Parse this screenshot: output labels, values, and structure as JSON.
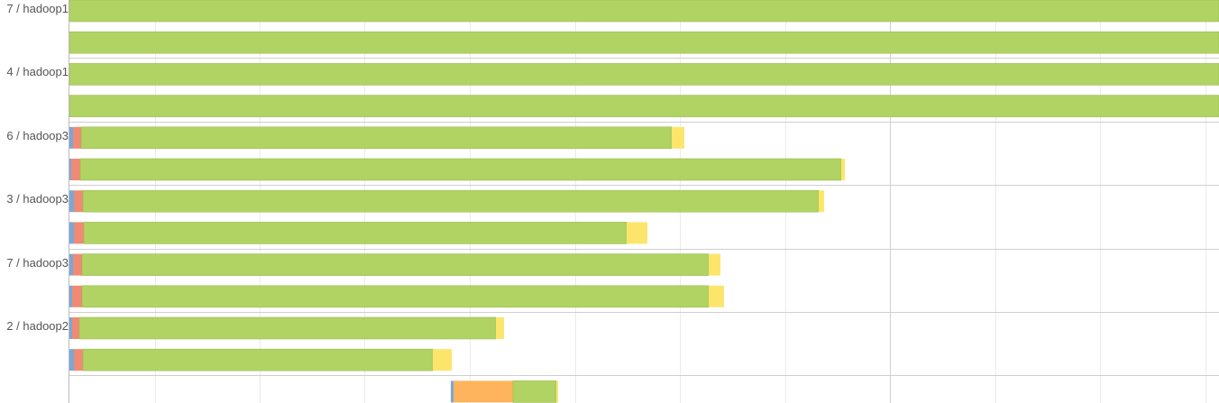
{
  "colors": {
    "gridline": "#ebebeb",
    "major_gridline": "#cfcfcf",
    "separator": "#cfcfcf",
    "axis": "#bbbbbb",
    "label_text": "#555555",
    "shuffle": "#7ba7d6",
    "merge": "#f08a74",
    "execute": "#b0d364",
    "execute_border": "#9cbc52",
    "output": "#fde56b",
    "orange": "#fdb45c"
  },
  "groups": [
    {
      "label": "7 / hadoop1"
    },
    {
      "label": "4 / hadoop1"
    },
    {
      "label": "6 / hadoop3"
    },
    {
      "label": "3 / hadoop3"
    },
    {
      "label": "7 / hadoop3"
    },
    {
      "label": "2 / hadoop2"
    }
  ],
  "tasks": [
    {
      "group": 0,
      "segments": [
        {
          "phase": "execute",
          "start": 0,
          "end": 1275
        }
      ]
    },
    {
      "group": 0,
      "segments": [
        {
          "phase": "execute",
          "start": 0,
          "end": 1275
        }
      ]
    },
    {
      "group": 1,
      "segments": [
        {
          "phase": "execute",
          "start": 0,
          "end": 1275
        }
      ]
    },
    {
      "group": 1,
      "segments": [
        {
          "phase": "execute",
          "start": 0,
          "end": 1275
        }
      ]
    },
    {
      "group": 2,
      "segments": [
        {
          "phase": "shuffle",
          "start": 0,
          "end": 4
        },
        {
          "phase": "merge",
          "start": 4,
          "end": 13
        },
        {
          "phase": "execute",
          "start": 13,
          "end": 668
        },
        {
          "phase": "output",
          "start": 668,
          "end": 682
        }
      ]
    },
    {
      "group": 2,
      "segments": [
        {
          "phase": "shuffle",
          "start": 0,
          "end": 2
        },
        {
          "phase": "merge",
          "start": 2,
          "end": 12
        },
        {
          "phase": "execute",
          "start": 12,
          "end": 856
        },
        {
          "phase": "output",
          "start": 856,
          "end": 860
        }
      ]
    },
    {
      "group": 3,
      "segments": [
        {
          "phase": "shuffle",
          "start": 0,
          "end": 5
        },
        {
          "phase": "merge",
          "start": 5,
          "end": 15
        },
        {
          "phase": "execute",
          "start": 15,
          "end": 831
        },
        {
          "phase": "output",
          "start": 831,
          "end": 837
        }
      ]
    },
    {
      "group": 3,
      "segments": [
        {
          "phase": "shuffle",
          "start": 0,
          "end": 5
        },
        {
          "phase": "merge",
          "start": 5,
          "end": 16
        },
        {
          "phase": "execute",
          "start": 16,
          "end": 618
        },
        {
          "phase": "output",
          "start": 618,
          "end": 641
        }
      ]
    },
    {
      "group": 4,
      "segments": [
        {
          "phase": "shuffle",
          "start": 0,
          "end": 4
        },
        {
          "phase": "merge",
          "start": 4,
          "end": 14
        },
        {
          "phase": "execute",
          "start": 14,
          "end": 709
        },
        {
          "phase": "output",
          "start": 709,
          "end": 722
        }
      ]
    },
    {
      "group": 4,
      "segments": [
        {
          "phase": "shuffle",
          "start": 0,
          "end": 3
        },
        {
          "phase": "merge",
          "start": 3,
          "end": 14
        },
        {
          "phase": "execute",
          "start": 14,
          "end": 709
        },
        {
          "phase": "output",
          "start": 709,
          "end": 726
        }
      ]
    },
    {
      "group": 5,
      "segments": [
        {
          "phase": "shuffle",
          "start": 0,
          "end": 3
        },
        {
          "phase": "merge",
          "start": 3,
          "end": 11
        },
        {
          "phase": "execute",
          "start": 11,
          "end": 473
        },
        {
          "phase": "output",
          "start": 473,
          "end": 482
        }
      ]
    },
    {
      "group": 5,
      "segments": [
        {
          "phase": "shuffle",
          "start": 0,
          "end": 5
        },
        {
          "phase": "merge",
          "start": 5,
          "end": 15
        },
        {
          "phase": "execute",
          "start": 15,
          "end": 403
        },
        {
          "phase": "output",
          "start": 403,
          "end": 424
        }
      ]
    },
    {
      "group": null,
      "segments": [
        {
          "phase": "shuffle",
          "start": 423,
          "end": 426
        },
        {
          "phase": "orange",
          "start": 426,
          "end": 492
        },
        {
          "phase": "execute",
          "start": 492,
          "end": 540
        },
        {
          "phase": "output",
          "start": 540,
          "end": 542
        }
      ]
    }
  ]
}
